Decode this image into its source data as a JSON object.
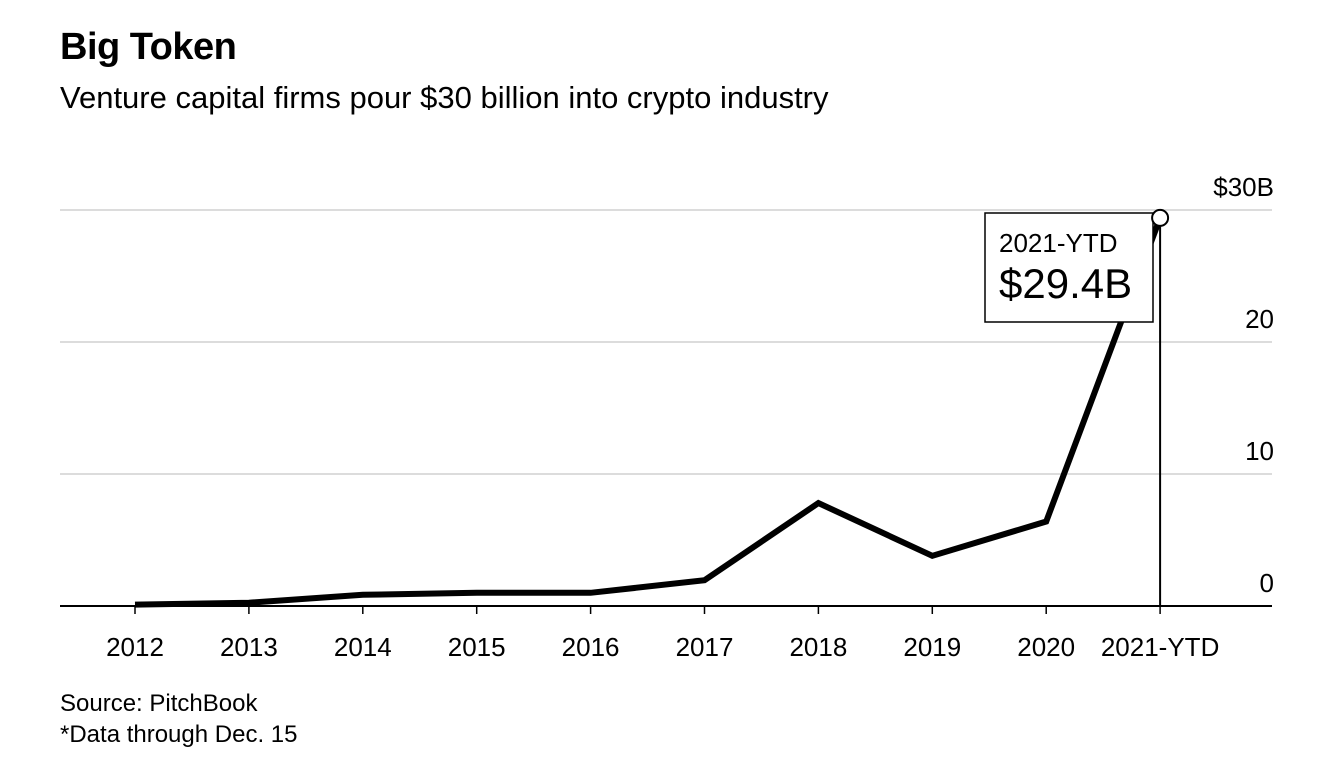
{
  "title": "Big Token",
  "subtitle": "Venture capital firms pour $30 billion into crypto industry",
  "source": "Source: PitchBook",
  "footnote": "*Data through Dec. 15",
  "annotation": {
    "label": "2021-YTD",
    "value_text": "$29.4B"
  },
  "colors": {
    "line": "#000000",
    "grid": "#dcdcdc",
    "axis": "#000000",
    "background": "#ffffff"
  },
  "chart_data": {
    "type": "line",
    "title": "Big Token",
    "subtitle": "Venture capital firms pour $30 billion into crypto industry",
    "categories": [
      "2012",
      "2013",
      "2014",
      "2015",
      "2016",
      "2017",
      "2018",
      "2019",
      "2020",
      "2021-YTD"
    ],
    "series": [
      {
        "values": [
          0.1,
          0.25,
          0.85,
          1.0,
          1.0,
          1.95,
          7.8,
          3.8,
          6.4,
          29.4
        ]
      }
    ],
    "yticks": [
      0,
      10,
      20,
      30
    ],
    "ytick_labels": [
      "0",
      "10",
      "20",
      "$30B"
    ],
    "ylim": [
      0,
      30
    ],
    "xlabel": "",
    "ylabel": "",
    "grid": true,
    "y_axis_position": "right",
    "legend": "none"
  }
}
